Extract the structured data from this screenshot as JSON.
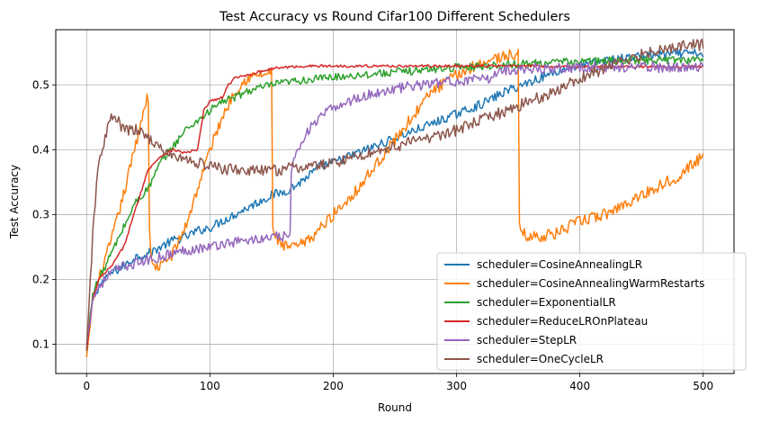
{
  "chart_data": {
    "type": "line",
    "title": "Test Accuracy vs Round Cifar100 Different Schedulers",
    "xlabel": "Round",
    "ylabel": "Test Accuracy",
    "xlim": [
      -25,
      525
    ],
    "ylim": [
      0.055,
      0.585
    ],
    "xticks": [
      0,
      100,
      200,
      300,
      400,
      500
    ],
    "yticks": [
      0.1,
      0.2,
      0.3,
      0.4,
      0.5
    ],
    "grid": true,
    "legend_position": "lower-right",
    "series": [
      {
        "name": "scheduler=CosineAnnealingLR",
        "color": "#1f77b4",
        "x": [
          0,
          5,
          10,
          20,
          30,
          40,
          50,
          60,
          70,
          80,
          90,
          100,
          110,
          120,
          130,
          140,
          150,
          160,
          170,
          180,
          190,
          200,
          220,
          240,
          260,
          280,
          300,
          320,
          340,
          360,
          380,
          400,
          420,
          440,
          460,
          480,
          500
        ],
        "y": [
          0.09,
          0.17,
          0.19,
          0.21,
          0.22,
          0.235,
          0.24,
          0.25,
          0.26,
          0.265,
          0.275,
          0.28,
          0.29,
          0.3,
          0.31,
          0.32,
          0.33,
          0.335,
          0.345,
          0.36,
          0.375,
          0.38,
          0.395,
          0.41,
          0.425,
          0.44,
          0.455,
          0.47,
          0.49,
          0.505,
          0.52,
          0.53,
          0.537,
          0.542,
          0.546,
          0.548,
          0.548
        ]
      },
      {
        "name": "scheduler=CosineAnnealingWarmRestarts",
        "color": "#ff7f0e",
        "x": [
          0,
          5,
          10,
          20,
          30,
          40,
          48,
          50,
          51,
          53,
          60,
          70,
          80,
          90,
          100,
          110,
          120,
          130,
          140,
          148,
          150,
          151,
          155,
          160,
          170,
          180,
          190,
          200,
          220,
          240,
          260,
          280,
          300,
          320,
          340,
          348,
          350,
          351,
          355,
          360,
          380,
          400,
          420,
          440,
          460,
          480,
          500
        ],
        "y": [
          0.08,
          0.17,
          0.2,
          0.26,
          0.33,
          0.41,
          0.475,
          0.48,
          0.28,
          0.22,
          0.22,
          0.24,
          0.28,
          0.34,
          0.4,
          0.45,
          0.49,
          0.51,
          0.515,
          0.517,
          0.517,
          0.28,
          0.26,
          0.25,
          0.25,
          0.26,
          0.28,
          0.3,
          0.34,
          0.39,
          0.44,
          0.49,
          0.515,
          0.535,
          0.545,
          0.546,
          0.546,
          0.28,
          0.27,
          0.265,
          0.27,
          0.29,
          0.3,
          0.32,
          0.34,
          0.36,
          0.39
        ]
      },
      {
        "name": "scheduler=ExponentialLR",
        "color": "#2ca02c",
        "x": [
          0,
          5,
          10,
          20,
          30,
          40,
          50,
          60,
          70,
          80,
          90,
          100,
          110,
          120,
          130,
          140,
          150,
          160,
          170,
          180,
          190,
          200,
          220,
          240,
          260,
          280,
          300,
          320,
          340,
          360,
          380,
          400,
          420,
          440,
          460,
          480,
          500
        ],
        "y": [
          0.09,
          0.18,
          0.2,
          0.24,
          0.28,
          0.32,
          0.34,
          0.38,
          0.405,
          0.43,
          0.445,
          0.46,
          0.475,
          0.48,
          0.49,
          0.495,
          0.5,
          0.503,
          0.506,
          0.508,
          0.51,
          0.512,
          0.515,
          0.518,
          0.521,
          0.524,
          0.527,
          0.529,
          0.531,
          0.533,
          0.535,
          0.536,
          0.537,
          0.538,
          0.538,
          0.539,
          0.539
        ]
      },
      {
        "name": "scheduler=ReduceLROnPlateau",
        "color": "#d62728",
        "x": [
          0,
          5,
          10,
          20,
          30,
          40,
          50,
          60,
          70,
          80,
          90,
          95,
          100,
          110,
          115,
          120,
          130,
          140,
          150,
          160,
          170,
          180,
          200,
          250,
          300,
          350,
          400,
          450,
          500
        ],
        "y": [
          0.09,
          0.17,
          0.2,
          0.22,
          0.25,
          0.31,
          0.37,
          0.39,
          0.4,
          0.395,
          0.4,
          0.46,
          0.475,
          0.48,
          0.5,
          0.51,
          0.515,
          0.52,
          0.525,
          0.527,
          0.528,
          0.529,
          0.529,
          0.529,
          0.529,
          0.529,
          0.528,
          0.528,
          0.528
        ]
      },
      {
        "name": "scheduler=StepLR",
        "color": "#9467bd",
        "x": [
          0,
          5,
          10,
          20,
          30,
          40,
          50,
          60,
          70,
          80,
          90,
          100,
          110,
          120,
          130,
          140,
          150,
          160,
          165,
          166,
          170,
          180,
          190,
          200,
          220,
          240,
          260,
          280,
          300,
          320,
          330,
          331,
          340,
          360,
          380,
          400,
          420,
          440,
          460,
          480,
          500
        ],
        "y": [
          0.1,
          0.17,
          0.19,
          0.21,
          0.22,
          0.225,
          0.23,
          0.235,
          0.24,
          0.245,
          0.248,
          0.25,
          0.255,
          0.258,
          0.26,
          0.262,
          0.264,
          0.266,
          0.268,
          0.36,
          0.4,
          0.43,
          0.45,
          0.465,
          0.48,
          0.49,
          0.497,
          0.502,
          0.506,
          0.508,
          0.509,
          0.52,
          0.523,
          0.525,
          0.526,
          0.527,
          0.527,
          0.527,
          0.527,
          0.527,
          0.527
        ]
      },
      {
        "name": "scheduler=OneCycleLR",
        "color": "#8c564b",
        "x": [
          0,
          3,
          6,
          10,
          15,
          20,
          25,
          30,
          40,
          50,
          60,
          70,
          80,
          90,
          100,
          110,
          120,
          130,
          140,
          150,
          160,
          170,
          180,
          190,
          200,
          220,
          240,
          260,
          280,
          300,
          320,
          340,
          360,
          380,
          400,
          420,
          440,
          460,
          480,
          500
        ],
        "y": [
          0.09,
          0.2,
          0.3,
          0.38,
          0.42,
          0.45,
          0.445,
          0.43,
          0.43,
          0.42,
          0.4,
          0.39,
          0.385,
          0.38,
          0.375,
          0.37,
          0.37,
          0.368,
          0.367,
          0.368,
          0.37,
          0.372,
          0.374,
          0.376,
          0.38,
          0.39,
          0.4,
          0.41,
          0.42,
          0.43,
          0.445,
          0.46,
          0.475,
          0.49,
          0.51,
          0.525,
          0.54,
          0.553,
          0.56,
          0.562
        ]
      }
    ]
  }
}
